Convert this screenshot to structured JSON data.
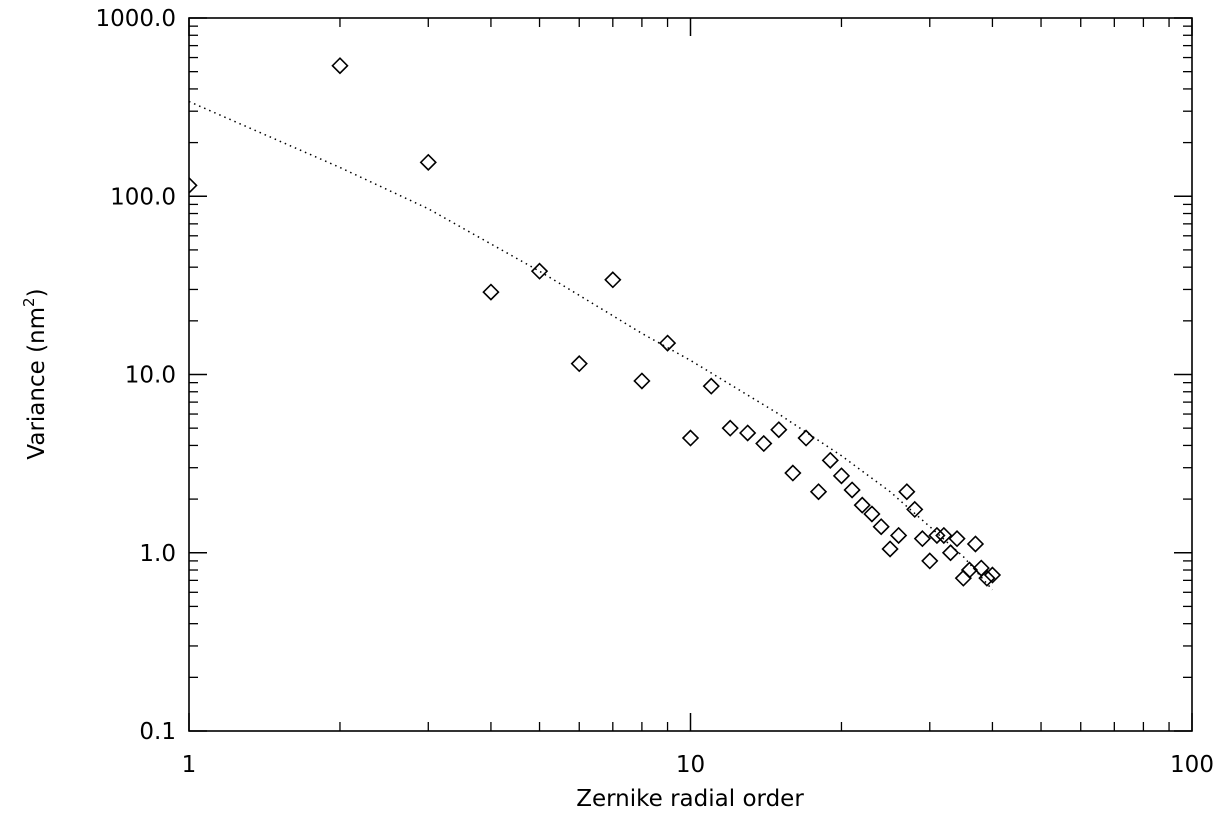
{
  "chart_data": {
    "type": "scatter",
    "title": "",
    "xlabel": "Zernike radial order",
    "ylabel": {
      "base": "Variance (nm",
      "superscript": "2",
      "close": ")"
    },
    "x_scale": "log",
    "y_scale": "log",
    "xlim": [
      1,
      100
    ],
    "ylim": [
      0.1,
      1000
    ],
    "x_ticks": [
      {
        "value": 1,
        "label": "1"
      },
      {
        "value": 10,
        "label": "10"
      },
      {
        "value": 100,
        "label": "100"
      }
    ],
    "y_ticks": [
      {
        "value": 0.1,
        "label": "0.1"
      },
      {
        "value": 1,
        "label": "1.0"
      },
      {
        "value": 10,
        "label": "10.0"
      },
      {
        "value": 100,
        "label": "100.0"
      },
      {
        "value": 1000,
        "label": "1000.0"
      }
    ],
    "grid": false,
    "legend": "none",
    "series": [
      {
        "marker": "diamond",
        "x": [
          1,
          2,
          3,
          4,
          5,
          6,
          7,
          8,
          9,
          10,
          11,
          12,
          13,
          14,
          15,
          16,
          17,
          18,
          19,
          20,
          21,
          22,
          23,
          24,
          25,
          26,
          27,
          28,
          29,
          30,
          31,
          32,
          33,
          34,
          35,
          36,
          37,
          38,
          39,
          40
        ],
        "y": [
          115,
          540,
          155,
          29,
          38,
          11.5,
          34,
          9.2,
          15,
          4.4,
          8.6,
          5.0,
          4.7,
          4.1,
          4.9,
          2.8,
          4.4,
          2.2,
          3.3,
          2.7,
          2.25,
          1.85,
          1.65,
          1.4,
          1.05,
          1.25,
          2.2,
          1.75,
          1.2,
          0.9,
          1.25,
          1.25,
          1.0,
          1.2,
          0.72,
          0.8,
          1.12,
          0.82,
          0.72,
          0.75
        ]
      },
      {
        "style": "dotted-line",
        "x": [
          1,
          2,
          3,
          5,
          8,
          10,
          15,
          20,
          25,
          30,
          35,
          40
        ],
        "y": [
          340,
          145,
          85,
          38,
          17,
          12,
          6.0,
          3.5,
          2.2,
          1.4,
          0.95,
          0.62
        ]
      }
    ]
  }
}
